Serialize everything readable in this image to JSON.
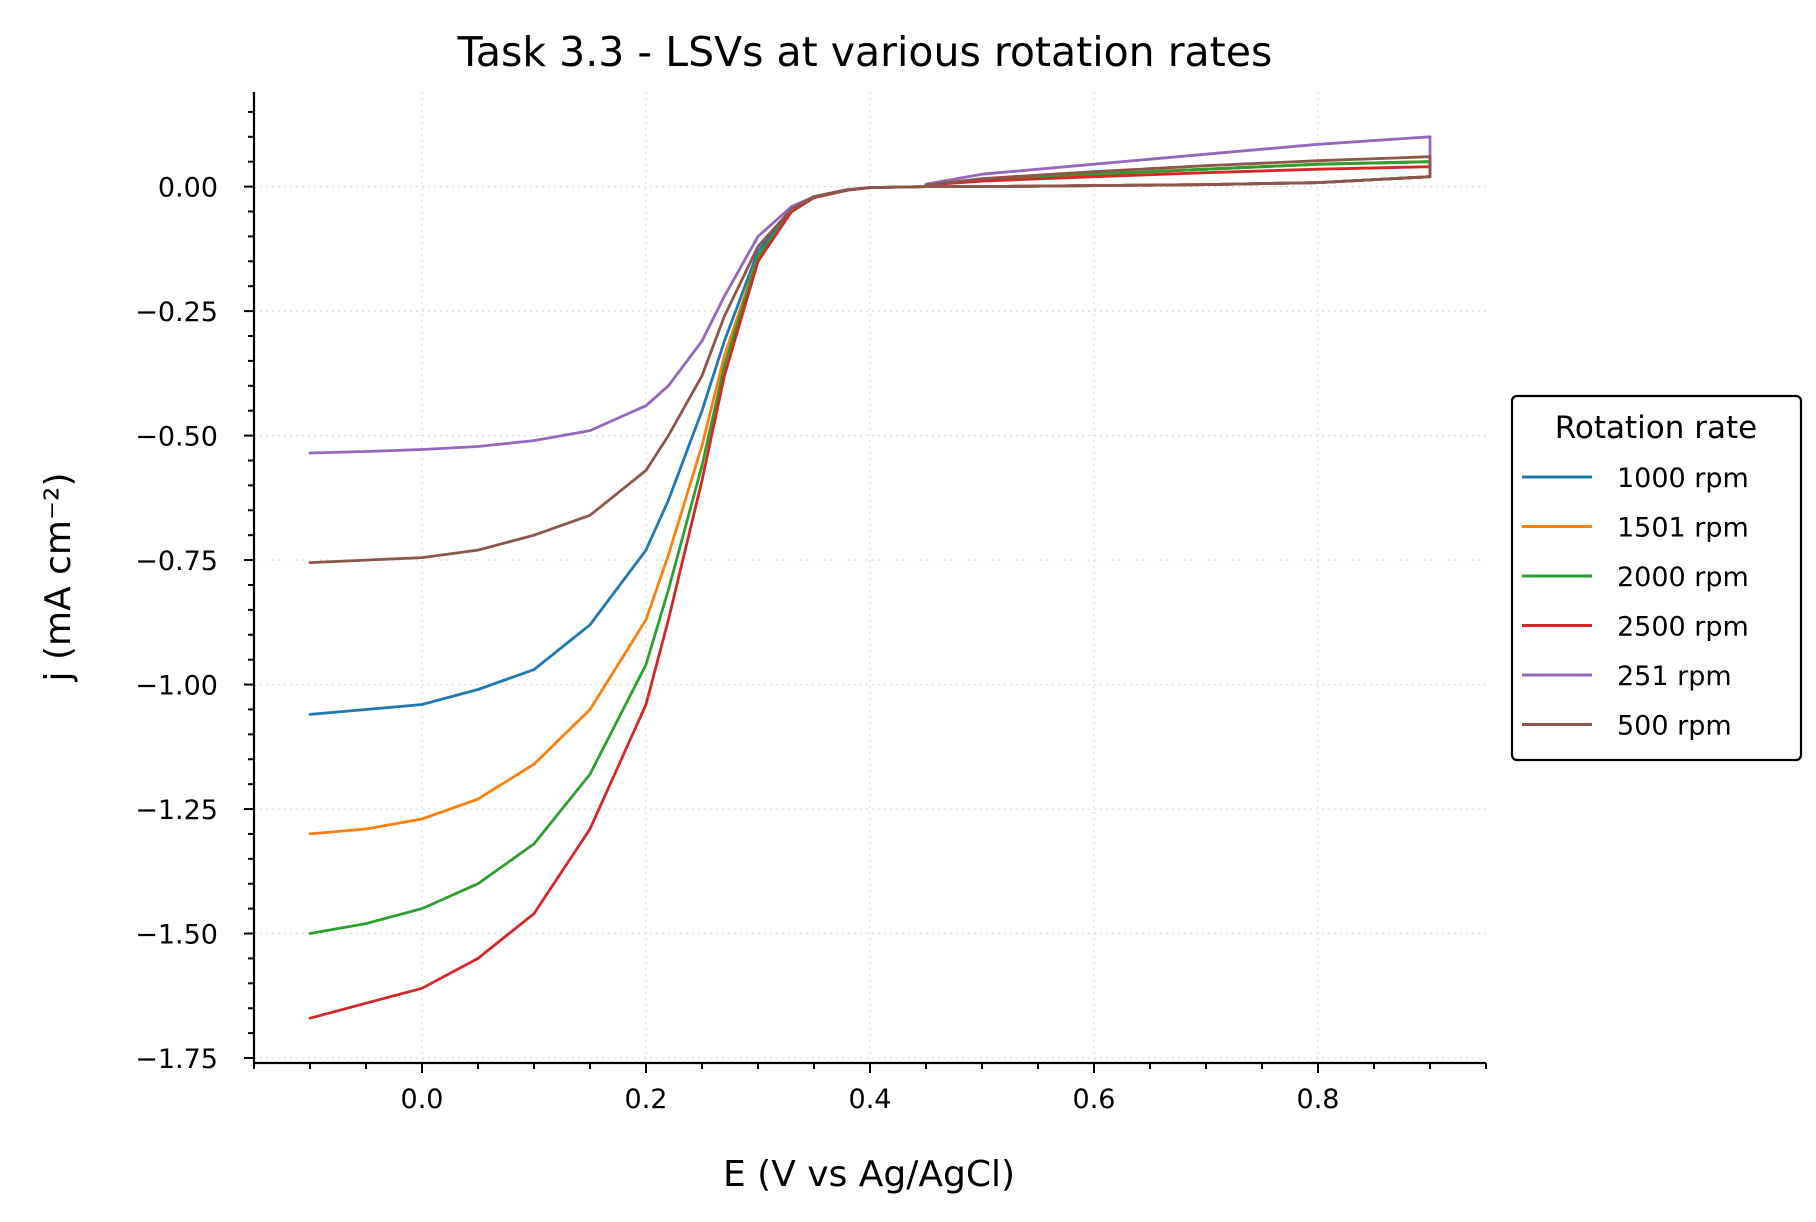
{
  "chart_data": {
    "type": "line",
    "title": "Task 3.3 - LSVs at various rotation rates",
    "xlabel": "E (V vs Ag/AgCl)",
    "ylabel": "j (mA cm⁻²)",
    "xlim": [
      -0.15,
      0.95
    ],
    "ylim": [
      -1.76,
      0.19
    ],
    "xticks": [
      0.0,
      0.2,
      0.4,
      0.6,
      0.8
    ],
    "xtick_labels": [
      "0.0",
      "0.2",
      "0.4",
      "0.6",
      "0.8"
    ],
    "yticks": [
      0.0,
      -0.25,
      -0.5,
      -0.75,
      -1.0,
      -1.25,
      -1.5,
      -1.75
    ],
    "ytick_labels": [
      "0.00",
      "−0.25",
      "−0.50",
      "−0.75",
      "−1.00",
      "−1.25",
      "−1.50",
      "−1.75"
    ],
    "grid": true,
    "legend": {
      "title": "Rotation rate",
      "placement": "outside right"
    },
    "series": [
      {
        "name": "1000 rpm",
        "color": "#1f77b4",
        "x": [
          -0.1,
          -0.05,
          0.0,
          0.05,
          0.1,
          0.15,
          0.2,
          0.22,
          0.25,
          0.27,
          0.3,
          0.33,
          0.35,
          0.38,
          0.4,
          0.45,
          0.5,
          0.6,
          0.7,
          0.8,
          0.9,
          0.9,
          0.8,
          0.7,
          0.6,
          0.5,
          0.45
        ],
        "y": [
          -1.06,
          -1.05,
          -1.04,
          -1.01,
          -0.97,
          -0.88,
          -0.73,
          -0.63,
          -0.45,
          -0.31,
          -0.13,
          -0.045,
          -0.02,
          -0.006,
          -0.002,
          0.0,
          0.0,
          0.002,
          0.004,
          0.008,
          0.02,
          0.05,
          0.045,
          0.035,
          0.025,
          0.013,
          0.003
        ]
      },
      {
        "name": "1501 rpm",
        "color": "#ff7f0e",
        "x": [
          -0.1,
          -0.05,
          0.0,
          0.05,
          0.1,
          0.15,
          0.2,
          0.22,
          0.25,
          0.27,
          0.3,
          0.33,
          0.35,
          0.38,
          0.4,
          0.45,
          0.5,
          0.6,
          0.7,
          0.8,
          0.9,
          0.9,
          0.8,
          0.7,
          0.6,
          0.5,
          0.45
        ],
        "y": [
          -1.3,
          -1.29,
          -1.27,
          -1.23,
          -1.16,
          -1.05,
          -0.87,
          -0.74,
          -0.52,
          -0.34,
          -0.14,
          -0.05,
          -0.022,
          -0.007,
          -0.002,
          0.0,
          0.0,
          0.002,
          0.004,
          0.008,
          0.02,
          0.05,
          0.045,
          0.035,
          0.025,
          0.013,
          0.003
        ]
      },
      {
        "name": "2000 rpm",
        "color": "#2ca02c",
        "x": [
          -0.1,
          -0.05,
          0.0,
          0.05,
          0.1,
          0.15,
          0.2,
          0.22,
          0.25,
          0.27,
          0.3,
          0.33,
          0.35,
          0.38,
          0.4,
          0.45,
          0.5,
          0.6,
          0.7,
          0.8,
          0.9,
          0.9,
          0.8,
          0.7,
          0.6,
          0.5,
          0.45
        ],
        "y": [
          -1.5,
          -1.48,
          -1.45,
          -1.4,
          -1.32,
          -1.18,
          -0.96,
          -0.81,
          -0.56,
          -0.36,
          -0.14,
          -0.05,
          -0.022,
          -0.007,
          -0.002,
          0.0,
          0.0,
          0.002,
          0.004,
          0.008,
          0.02,
          0.05,
          0.045,
          0.035,
          0.025,
          0.013,
          0.003
        ]
      },
      {
        "name": "2500 rpm",
        "color": "#d62728",
        "x": [
          -0.1,
          -0.05,
          0.0,
          0.05,
          0.1,
          0.15,
          0.2,
          0.22,
          0.25,
          0.27,
          0.3,
          0.33,
          0.35,
          0.38,
          0.4,
          0.45,
          0.5,
          0.6,
          0.7,
          0.8,
          0.9,
          0.9,
          0.8,
          0.7,
          0.6,
          0.5,
          0.45
        ],
        "y": [
          -1.67,
          -1.64,
          -1.61,
          -1.55,
          -1.46,
          -1.29,
          -1.04,
          -0.87,
          -0.59,
          -0.38,
          -0.15,
          -0.05,
          -0.022,
          -0.007,
          -0.002,
          0.0,
          0.0,
          0.002,
          0.004,
          0.008,
          0.02,
          0.04,
          0.035,
          0.028,
          0.02,
          0.011,
          0.003
        ]
      },
      {
        "name": "251 rpm",
        "color": "#9467bd",
        "x": [
          -0.1,
          -0.05,
          0.0,
          0.05,
          0.1,
          0.15,
          0.2,
          0.22,
          0.25,
          0.27,
          0.3,
          0.33,
          0.35,
          0.38,
          0.4,
          0.45,
          0.5,
          0.6,
          0.7,
          0.8,
          0.9,
          0.9,
          0.8,
          0.7,
          0.6,
          0.5,
          0.45
        ],
        "y": [
          -0.535,
          -0.532,
          -0.528,
          -0.522,
          -0.51,
          -0.49,
          -0.44,
          -0.4,
          -0.31,
          -0.22,
          -0.1,
          -0.04,
          -0.02,
          -0.006,
          -0.002,
          0.0,
          0.0,
          0.002,
          0.004,
          0.008,
          0.02,
          0.1,
          0.085,
          0.065,
          0.045,
          0.025,
          0.005
        ]
      },
      {
        "name": "500 rpm",
        "color": "#8c564b",
        "x": [
          -0.1,
          -0.05,
          0.0,
          0.05,
          0.1,
          0.15,
          0.2,
          0.22,
          0.25,
          0.27,
          0.3,
          0.33,
          0.35,
          0.38,
          0.4,
          0.45,
          0.5,
          0.6,
          0.7,
          0.8,
          0.9,
          0.9,
          0.8,
          0.7,
          0.6,
          0.5,
          0.45
        ],
        "y": [
          -0.755,
          -0.75,
          -0.745,
          -0.73,
          -0.7,
          -0.66,
          -0.57,
          -0.5,
          -0.38,
          -0.26,
          -0.12,
          -0.045,
          -0.02,
          -0.006,
          -0.002,
          0.0,
          0.0,
          0.002,
          0.004,
          0.008,
          0.02,
          0.06,
          0.052,
          0.042,
          0.03,
          0.016,
          0.003
        ]
      }
    ]
  }
}
